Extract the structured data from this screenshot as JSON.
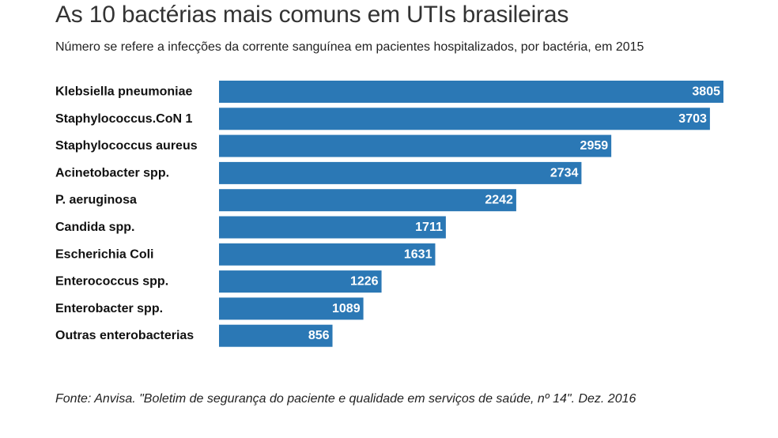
{
  "title": "As 10 bactérias mais comuns em UTIs brasileiras",
  "subtitle": "Número se refere a infecções da corrente sanguínea em pacientes hospitalizados, por bactéria, em 2015",
  "source": "Fonte: Anvisa. \"Boletim de segurança do paciente e qualidade em serviços de saúde, nº 14\". Dez. 2016",
  "colors": {
    "bar": "#2b78b5",
    "value_label": "#ffffff",
    "category_label": "#111111"
  },
  "chart_data": {
    "type": "bar",
    "orientation": "horizontal",
    "categories": [
      "Klebsiella pneumoniae",
      "Staphylococcus.CoN 1",
      "Staphylococcus aureus",
      "Acinetobacter spp.",
      "P. aeruginosa",
      "Candida spp.",
      "Escherichia Coli",
      "Enterococcus spp.",
      "Enterobacter spp.",
      "Outras enterobacterias"
    ],
    "values": [
      3805,
      3703,
      2959,
      2734,
      2242,
      1711,
      1631,
      1226,
      1089,
      856
    ],
    "xlim": [
      0,
      3805
    ],
    "grid": false,
    "legend": "none",
    "data_labels": "inside-end"
  }
}
